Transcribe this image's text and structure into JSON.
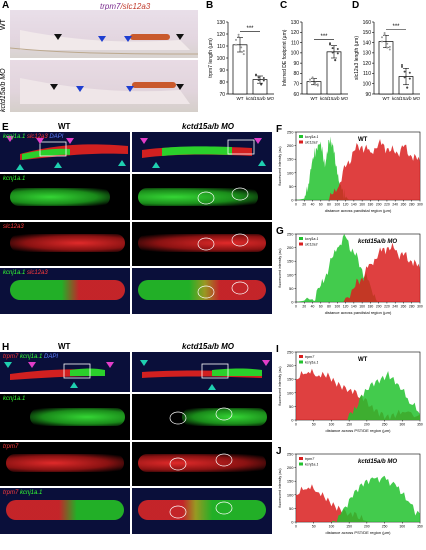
{
  "panels": {
    "A": {
      "letter": "A",
      "title_trpm7": "trpm7",
      "title_slc": "/slc12a3",
      "wt": "WT",
      "mo": "kctd15a/b MO"
    },
    "B": {
      "letter": "B",
      "ylabel": "trpm7 length (µm)",
      "sig": "***"
    },
    "C": {
      "letter": "C",
      "ylabel": "Inferred DE footprint (µm)",
      "sig": "***"
    },
    "D": {
      "letter": "D",
      "ylabel": "slc12a3 length (µm)",
      "sig": "***"
    },
    "E": {
      "letter": "E",
      "wt": "WT",
      "mo": "kctd15a/b MO",
      "g1": "kcnj1a.1",
      "g2": "slc12a3",
      "g3": "DAPI",
      "row1": "kcnj1a.1",
      "row2": "slc12a3",
      "row3a": "kcnj1a.1",
      "row3b": "slc12a3"
    },
    "F": {
      "letter": "F",
      "cond": "WT",
      "l1": "kcnj1a.1",
      "l2": "slc12a3",
      "xlabel": "distance across pandistal region (µm)",
      "ylabel": "fluorescent intensity (au)"
    },
    "G": {
      "letter": "G",
      "cond": "kctd15a/b MO",
      "l1": "kcnj1a.1",
      "l2": "slc12a3",
      "xlabel": "distance across pandistal region (µm)",
      "ylabel": "fluorescent intensity (au)"
    },
    "H": {
      "letter": "H",
      "wt": "WT",
      "mo": "kctd15a/b MO",
      "g1": "trpm7",
      "g2": "kcnj1a.1",
      "g3": "DAPI",
      "row1": "kcnj1a.1",
      "row2": "trpm7",
      "row3a": "trpm7",
      "row3b": "kcnj1a.1"
    },
    "I": {
      "letter": "I",
      "cond": "WT",
      "l1": "trpm7",
      "l2": "kcnj1a.1",
      "xlabel": "distance across PST/DE region (µm)",
      "ylabel": "fluorescent intensity (au)"
    },
    "J": {
      "letter": "J",
      "cond": "kctd15a/b MO",
      "l1": "trpm7",
      "l2": "kcnj1a.1",
      "xlabel": "distance across PST/DE region (µm)",
      "ylabel": "fluorescent intensity (au)"
    }
  },
  "chart_data": [
    {
      "id": "B",
      "type": "bar",
      "categories": [
        "WT",
        "kctd15a/b MO"
      ],
      "values": [
        111,
        82
      ],
      "errors": [
        6,
        3
      ],
      "ylabel": "trpm7 length (µm)",
      "ylim": [
        70,
        130
      ],
      "yticks": [
        70,
        80,
        90,
        100,
        110,
        120,
        130
      ],
      "significance": "***"
    },
    {
      "id": "C",
      "type": "bar",
      "categories": [
        "WT",
        "kctd15a/b MO"
      ],
      "values": [
        72,
        101
      ],
      "errors": [
        3,
        6
      ],
      "ylabel": "Inferred DE footprint (µm)",
      "ylim": [
        60,
        130
      ],
      "yticks": [
        60,
        70,
        80,
        90,
        100,
        110,
        120,
        130
      ],
      "significance": "***"
    },
    {
      "id": "D",
      "type": "bar",
      "categories": [
        "WT",
        "kctd15a/b MO"
      ],
      "values": [
        141,
        107
      ],
      "errors": [
        6,
        8
      ],
      "ylabel": "slc12a3 length (µm)",
      "ylim": [
        90,
        160
      ],
      "yticks": [
        90,
        100,
        110,
        120,
        130,
        140,
        150,
        160
      ],
      "significance": "***"
    },
    {
      "id": "F",
      "type": "area",
      "xlim": [
        0,
        300
      ],
      "ylim": [
        0,
        250
      ],
      "xticks": [
        0,
        20,
        40,
        60,
        80,
        100,
        120,
        140,
        160,
        180,
        200,
        220,
        240,
        260,
        280,
        300
      ],
      "yticks": [
        0,
        50,
        100,
        150,
        200,
        250
      ],
      "series": [
        {
          "name": "kcnj1a.1",
          "color": "#22c22e",
          "x": [
            0,
            20,
            30,
            40,
            50,
            60,
            70,
            80,
            90,
            100,
            110,
            120,
            130,
            300
          ],
          "y": [
            0,
            5,
            60,
            150,
            190,
            215,
            120,
            220,
            200,
            90,
            40,
            10,
            0,
            0
          ]
        },
        {
          "name": "slc12a3",
          "color": "#d91f1f",
          "x": [
            0,
            80,
            100,
            120,
            140,
            160,
            180,
            200,
            220,
            240,
            260,
            280,
            300
          ],
          "y": [
            0,
            0,
            40,
            120,
            180,
            200,
            175,
            210,
            190,
            170,
            195,
            160,
            140
          ]
        }
      ]
    },
    {
      "id": "G",
      "type": "area",
      "xlim": [
        0,
        300
      ],
      "ylim": [
        0,
        250
      ],
      "xticks": [
        0,
        20,
        40,
        60,
        80,
        100,
        120,
        140,
        160,
        180,
        200,
        220,
        240,
        260,
        280,
        300
      ],
      "yticks": [
        0,
        50,
        100,
        150,
        200,
        250
      ],
      "series": [
        {
          "name": "kcnj1a.1",
          "color": "#22c22e",
          "x": [
            0,
            40,
            60,
            80,
            100,
            120,
            140,
            160,
            180,
            200,
            300
          ],
          "y": [
            0,
            10,
            60,
            130,
            200,
            240,
            180,
            120,
            60,
            0,
            0
          ]
        },
        {
          "name": "slc12a3",
          "color": "#d91f1f",
          "x": [
            0,
            110,
            140,
            160,
            180,
            200,
            220,
            240,
            260,
            280,
            300
          ],
          "y": [
            0,
            0,
            50,
            90,
            140,
            180,
            200,
            190,
            170,
            150,
            120
          ]
        }
      ]
    },
    {
      "id": "I",
      "type": "area",
      "xlim": [
        0,
        350
      ],
      "ylim": [
        0,
        250
      ],
      "xticks": [
        0,
        50,
        100,
        150,
        200,
        250,
        300,
        350
      ],
      "yticks": [
        0,
        50,
        100,
        150,
        200,
        250
      ],
      "series": [
        {
          "name": "trpm7",
          "color": "#d91f1f",
          "x": [
            0,
            30,
            60,
            90,
            120,
            150,
            180,
            210,
            240,
            270,
            300,
            350
          ],
          "y": [
            150,
            170,
            160,
            175,
            140,
            110,
            80,
            50,
            30,
            20,
            30,
            20
          ]
        },
        {
          "name": "kcnj1a.1",
          "color": "#22c22e",
          "x": [
            0,
            140,
            170,
            200,
            230,
            260,
            290,
            320,
            350
          ],
          "y": [
            0,
            0,
            40,
            110,
            150,
            180,
            130,
            60,
            20
          ]
        }
      ]
    },
    {
      "id": "J",
      "type": "area",
      "xlim": [
        0,
        350
      ],
      "ylim": [
        0,
        250
      ],
      "xticks": [
        0,
        50,
        100,
        150,
        200,
        250,
        300,
        350
      ],
      "yticks": [
        0,
        50,
        100,
        150,
        200,
        250
      ],
      "series": [
        {
          "name": "trpm7",
          "color": "#d91f1f",
          "x": [
            0,
            30,
            60,
            90,
            120,
            150,
            180,
            210,
            350
          ],
          "y": [
            100,
            120,
            110,
            90,
            60,
            30,
            10,
            0,
            0
          ]
        },
        {
          "name": "kcnj1a.1",
          "color": "#22c22e",
          "x": [
            0,
            100,
            130,
            160,
            190,
            220,
            250,
            280,
            310,
            350
          ],
          "y": [
            0,
            0,
            40,
            90,
            130,
            160,
            170,
            140,
            80,
            30
          ]
        }
      ]
    }
  ],
  "colors": {
    "wt_bar": "#ffffff",
    "dot": "#888888",
    "green": "#22c22e",
    "red": "#d91f1f",
    "blue": "#2b3dbf"
  }
}
